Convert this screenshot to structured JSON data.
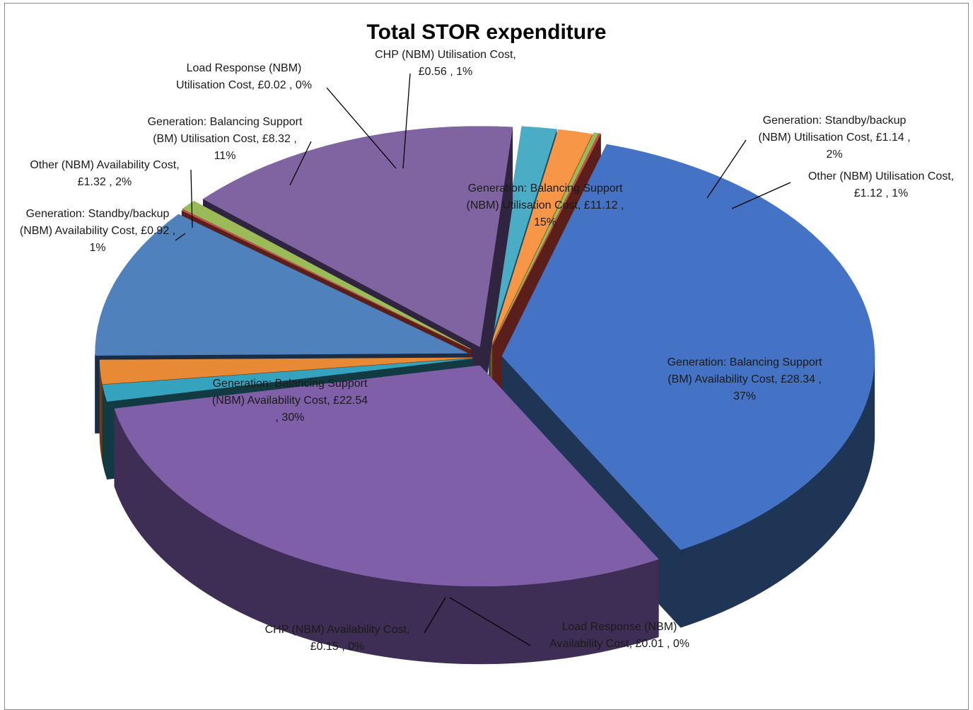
{
  "chart_data": {
    "type": "pie",
    "style": "3d-exploded",
    "title": "Total STOR expenditure",
    "currency": "£",
    "slices": [
      {
        "name": "Generation: Balancing Support (BM) Availability Cost",
        "value": 28.34,
        "percent": "37%",
        "value_label": "£28.34",
        "label_lines": [
          "Generation: Balancing Support",
          "(BM) Availability Cost,  £28.34 ,",
          "37%"
        ],
        "color": "#4472C4",
        "dark": "#1E3555"
      },
      {
        "name": "Generation: Balancing Support (NBM) Availability Cost",
        "value": 22.54,
        "percent": "30%",
        "value_label": "£22.54",
        "label_lines": [
          "Generation: Balancing Support",
          "(NBM) Availability Cost,  £22.54",
          ", 30%"
        ],
        "color": "#7E5FA8",
        "dark": "#3E2D55"
      },
      {
        "name": "Generation: Standby/backup (NBM) Availability Cost",
        "value": 0.92,
        "percent": "1%",
        "value_label": "£0.92",
        "label_lines": [
          "Generation:  Standby/backup",
          "(NBM) Availability Cost,  £0.92 ,",
          "1%"
        ],
        "color": "#35A3BD",
        "dark": "#123A42"
      },
      {
        "name": "Other (NBM) Availability Cost",
        "value": 1.32,
        "percent": "2%",
        "value_label": "£1.32",
        "label_lines": [
          "Other (NBM) Availability Cost,",
          "£1.32 , 2%"
        ],
        "color": "#E88A35",
        "dark": "#6E3B10"
      },
      {
        "name": "Generation: Balancing Support (BM) Utilisation Cost",
        "value": 8.32,
        "percent": "11%",
        "value_label": "£8.32",
        "label_lines": [
          "Generation: Balancing Support",
          "(BM) Utilisation Cost,  £8.32 ,",
          "11%"
        ],
        "color": "#4F81BD",
        "dark": "#1B2D45"
      },
      {
        "name": "Load Response (NBM) Utilisation Cost",
        "value": 0.02,
        "percent": "0%",
        "value_label": "£0.02",
        "label_lines": [
          "Load Response (NBM)",
          "Utilisation Cost,  £0.02 , 0%"
        ],
        "color": "#C0504D",
        "dark": "#5A1E1B"
      },
      {
        "name": "CHP (NBM) Utilisation Cost",
        "value": 0.56,
        "percent": "1%",
        "value_label": "£0.56",
        "label_lines": [
          "CHP (NBM) Utilisation Cost,",
          "£0.56 , 1%"
        ],
        "color": "#9BBB59",
        "dark": "#4A5E24"
      },
      {
        "name": "Generation: Balancing Support (NBM) Utilisation Cost",
        "value": 11.12,
        "percent": "15%",
        "value_label": "£11.12",
        "label_lines": [
          "Generation: Balancing Support",
          "(NBM) Utilisation Cost,  £11.12 ,",
          "15%"
        ],
        "color": "#8064A2",
        "dark": "#2F2540"
      },
      {
        "name": "Generation: Standby/backup (NBM) Utilisation Cost",
        "value": 1.14,
        "percent": "2%",
        "value_label": "£1.14",
        "label_lines": [
          "Generation: Standby/backup",
          "(NBM) Utilisation Cost,  £1.14 ,",
          "2%"
        ],
        "color": "#4BACC6",
        "dark": "#1C4A56"
      },
      {
        "name": "Other (NBM) Utilisation Cost",
        "value": 1.12,
        "percent": "1%",
        "value_label": "£1.12",
        "label_lines": [
          "Other (NBM) Utilisation Cost,",
          "£1.12 , 1%"
        ],
        "color": "#F79646",
        "dark": "#8A4A18"
      },
      {
        "name": "CHP (NBM) Availability Cost",
        "value": 0.15,
        "percent": "0%",
        "value_label": "£0.15",
        "label_lines": [
          "CHP (NBM) Availability Cost,",
          "£0.15 , 0%"
        ],
        "color": "#9BBB59",
        "dark": "#4A5E24"
      },
      {
        "name": "Load Response (NBM) Availability Cost",
        "value": 0.01,
        "percent": "0%",
        "value_label": "£0.01",
        "label_lines": [
          "Load Response (NBM)",
          "Availability Cost,  £0.01 , 0%"
        ],
        "color": "#C0504D",
        "dark": "#5A1E1B"
      }
    ]
  }
}
